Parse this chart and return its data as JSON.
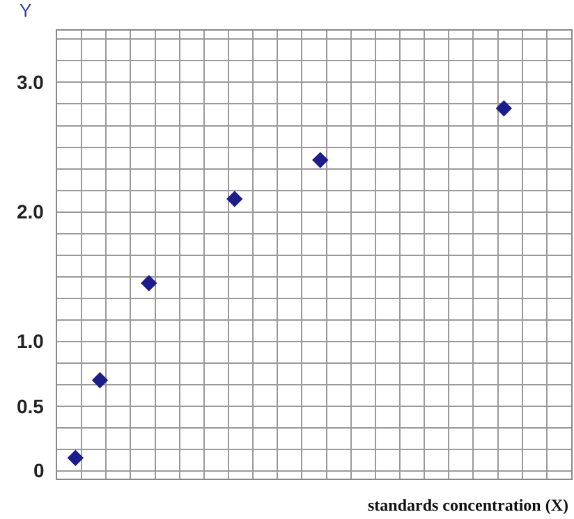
{
  "chart_data": {
    "type": "scatter",
    "ylabel": "Y",
    "xlabel": "standards concentration (X)",
    "categories": [
      null,
      null,
      null,
      null,
      null,
      null,
      null,
      null,
      null,
      null,
      null,
      null,
      null,
      null,
      null,
      null,
      null,
      null,
      null,
      null,
      null,
      null,
      null,
      null,
      null,
      null,
      null,
      null,
      null,
      null,
      null,
      null,
      null,
      null,
      null,
      null,
      null,
      null,
      null,
      null,
      null,
      null
    ],
    "values": [
      null,
      0.1,
      null,
      0.7,
      null,
      null,
      null,
      1.45,
      null,
      null,
      null,
      null,
      null,
      null,
      2.1,
      null,
      null,
      null,
      null,
      null,
      null,
      2.4,
      null,
      null,
      null,
      null,
      null,
      null,
      null,
      null,
      null,
      null,
      null,
      null,
      null,
      null,
      2.8,
      null,
      null,
      null,
      null,
      null
    ],
    "color": "#1c1c8c",
    "marker": "diamond",
    "ylim": [
      -0.06,
      3.4
    ],
    "yticks": [
      {
        "value": 0,
        "label": "0"
      },
      {
        "value": 0.5,
        "label": "0.5"
      },
      {
        "value": 1,
        "label": "1.0"
      },
      {
        "value": 2,
        "label": "2.0"
      },
      {
        "value": 3,
        "label": "3.0"
      }
    ],
    "tick_labels": "y",
    "grid": true
  }
}
